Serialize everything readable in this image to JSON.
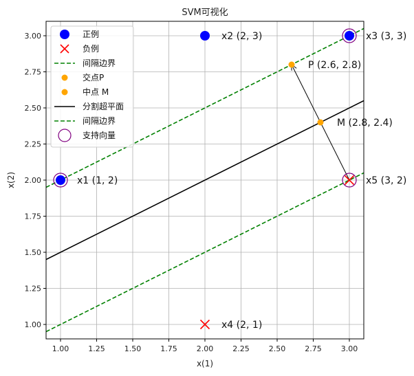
{
  "chart_data": {
    "type": "scatter",
    "title": "SVM可视化",
    "xlabel": "x(1)",
    "ylabel": "x(2)",
    "xlim": [
      0.9,
      3.1
    ],
    "ylim": [
      0.9,
      3.1
    ],
    "xticks": [
      1.0,
      1.25,
      1.5,
      1.75,
      2.0,
      2.25,
      2.5,
      2.75,
      3.0
    ],
    "xtick_labels": [
      "1.00",
      "1.25",
      "1.50",
      "1.75",
      "2.00",
      "2.25",
      "2.50",
      "2.75",
      "3.00"
    ],
    "yticks": [
      1.0,
      1.25,
      1.5,
      1.75,
      2.0,
      2.25,
      2.5,
      2.75,
      3.0
    ],
    "ytick_labels": [
      "1.00",
      "1.25",
      "1.50",
      "1.75",
      "2.00",
      "2.25",
      "2.50",
      "2.75",
      "3.00"
    ],
    "grid": true,
    "legend_position": "top-left",
    "positive_points": [
      {
        "x": 1,
        "y": 2,
        "label": "x1 (1, 2)"
      },
      {
        "x": 2,
        "y": 3,
        "label": "x2 (2, 3)"
      },
      {
        "x": 3,
        "y": 3,
        "label": "x3 (3, 3)"
      }
    ],
    "negative_points": [
      {
        "x": 2,
        "y": 1,
        "label": "x4 (2, 1)"
      },
      {
        "x": 3,
        "y": 2,
        "label": "x5 (3, 2)"
      }
    ],
    "intersection_point": {
      "x": 2.6,
      "y": 2.8,
      "label": "P (2.6, 2.8)"
    },
    "midpoint": {
      "x": 2.8,
      "y": 2.4,
      "label": "M (2.8, 2.4)"
    },
    "hyperplane": {
      "slope": 0.5,
      "intercept": 1.0
    },
    "margin_upper": {
      "slope": 0.5,
      "intercept": 1.5
    },
    "margin_lower": {
      "slope": 0.5,
      "intercept": 0.5
    },
    "support_vectors": [
      {
        "x": 1,
        "y": 2
      },
      {
        "x": 3,
        "y": 3
      },
      {
        "x": 3,
        "y": 2
      }
    ],
    "arrow": {
      "from": {
        "x": 3,
        "y": 2
      },
      "to": {
        "x": 2.6,
        "y": 2.8
      }
    },
    "legend": [
      {
        "label": "正例",
        "marker": "circle",
        "color": "#0000ff"
      },
      {
        "label": "负例",
        "marker": "x",
        "color": "#ff0000"
      },
      {
        "label": "间隔边界",
        "marker": "dashed",
        "color": "#008000"
      },
      {
        "label": "交点P",
        "marker": "dot",
        "color": "#ffa500"
      },
      {
        "label": "中点 M",
        "marker": "dot",
        "color": "#ffa500"
      },
      {
        "label": "分割超平面",
        "marker": "line",
        "color": "#000000"
      },
      {
        "label": "间隔边界",
        "marker": "dashed",
        "color": "#008000"
      },
      {
        "label": "支持向量",
        "marker": "ring",
        "color": "#800080"
      }
    ],
    "colors": {
      "positive": "#0000ff",
      "negative": "#ff0000",
      "margin": "#008000",
      "orange": "#ffa500",
      "hyperplane": "#000000",
      "support": "#800080",
      "grid": "#b0b0b0"
    }
  }
}
